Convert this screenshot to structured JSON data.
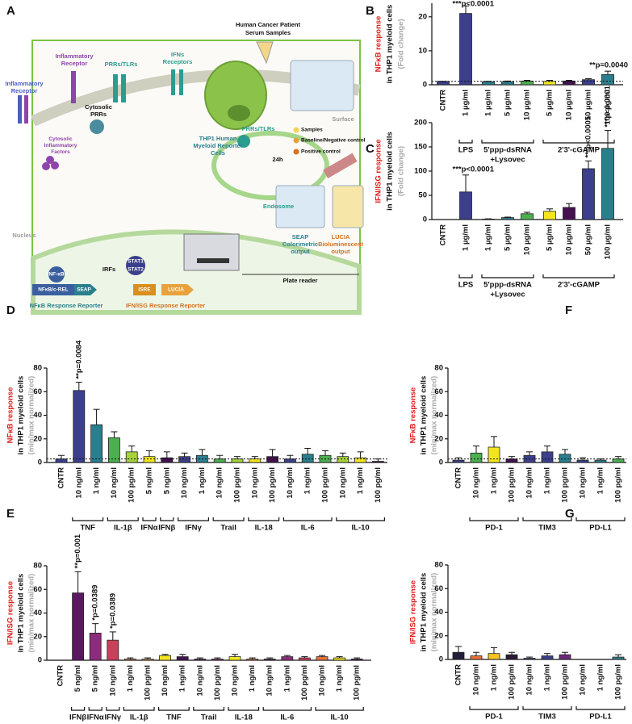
{
  "panel_a": {
    "letter": "A",
    "serum": [
      "Human Cancer Patient",
      "Serum Samples"
    ],
    "inflammatory_receptor_1": [
      "Inflammatory",
      "Receptor"
    ],
    "inflammatory_receptor_2": [
      "Inflammatory",
      "Receptor"
    ],
    "prrs_tlrs_surface": "PRRs/TLRs",
    "ifns_receptors": [
      "IFNs",
      "Receptors"
    ],
    "surface": "Surface",
    "cytosolic_prrs": [
      "Cytosolic",
      "PRRs"
    ],
    "cytosolic_factors": [
      "Cytosolic",
      "Inflammatory",
      "Factors"
    ],
    "prrs_tlrs_endosome": "PRRs/TLRs",
    "endosome": "Endosome",
    "nucleus": "Nucleus",
    "nfkb": "NF-κB",
    "irfs": "IRFs",
    "stat1": "STAT1",
    "stat2": "STAT2",
    "nfkb_crel": "NFκB/c-REL",
    "seap": "SEAP",
    "isre": "ISRE",
    "lucia": "LUCIA",
    "nfkb_reporter": "NFκB Response Reporter",
    "ifn_reporter": "IFN/ISG Response Reporter",
    "thp1": [
      "THP1 Human",
      "Myeloid Reporter",
      "Cells"
    ],
    "legend_samples": "Samples",
    "legend_baseline": "Baseline/Negative control",
    "legend_positive": "Positive control",
    "time": "24h",
    "seap_output": [
      "SEAP",
      "Colorimetric",
      "output"
    ],
    "lucia_output": [
      "LUCIA",
      "Bioluminescent",
      "output"
    ],
    "plate_reader": "Plate reader"
  },
  "chart_data": [
    {
      "type": "bar",
      "panel": "B",
      "ylabel": [
        {
          "text": "NFκB response",
          "color": "#e31a1c"
        },
        {
          "text": "in THP1 myeloid cells",
          "color": "#111111"
        },
        {
          "text": "(Fold change)",
          "color": "#aaaaaa"
        }
      ],
      "ylim": [
        0,
        24
      ],
      "yticks": [
        0,
        10,
        20
      ],
      "reference_line": 1,
      "groups": [
        {
          "label": null,
          "categories": [
            "CNTR"
          ],
          "values": [
            1
          ],
          "errors": [
            0
          ],
          "colors": [
            "#3b3f8c"
          ]
        },
        {
          "label": [
            "LPS"
          ],
          "categories": [
            "1 µg/ml"
          ],
          "values": [
            21
          ],
          "errors": [
            2.2
          ],
          "colors": [
            "#3b3f8c"
          ],
          "annotations": [
            "***p<0.0001"
          ]
        },
        {
          "label": [
            "5'ppp-dsRNA",
            "+Lysovec"
          ],
          "categories": [
            "1 µg/ml",
            "5 µg/ml",
            "10 µg/ml"
          ],
          "values": [
            0.9,
            0.9,
            1.1
          ],
          "errors": [
            0.1,
            0.2,
            0.2
          ],
          "colors": [
            "#2a7f8e",
            "#2a7f8e",
            "#4caf50"
          ]
        },
        {
          "label": [
            "2'3'-cGAMP"
          ],
          "categories": [
            "5 µg/ml",
            "10 µg/ml",
            "50 µg/ml",
            "100 µg/ml"
          ],
          "values": [
            1,
            1.1,
            1.5,
            3
          ],
          "errors": [
            0.3,
            0.2,
            0.3,
            1
          ],
          "colors": [
            "#f3e61e",
            "#44114f",
            "#3b3f8c",
            "#2a7f8e"
          ],
          "annotations": [
            null,
            null,
            null,
            "**p=0.0040"
          ]
        }
      ]
    },
    {
      "type": "bar",
      "panel": "C",
      "ylabel": [
        {
          "text": "IFN/ISG response",
          "color": "#e31a1c"
        },
        {
          "text": "in THP1 myeloid cells",
          "color": "#111111"
        },
        {
          "text": "(Fold change)",
          "color": "#aaaaaa"
        }
      ],
      "ylim": [
        0,
        200
      ],
      "yticks": [
        0,
        50,
        100,
        150,
        200
      ],
      "groups": [
        {
          "label": null,
          "categories": [
            "CNTR"
          ],
          "values": [
            0
          ],
          "errors": [
            0
          ],
          "colors": [
            "#3b3f8c"
          ]
        },
        {
          "label": [
            "LPS"
          ],
          "categories": [
            "1 µg/ml"
          ],
          "values": [
            57
          ],
          "errors": [
            35
          ],
          "colors": [
            "#3b3f8c"
          ],
          "annotations": [
            "***p<0.0001"
          ]
        },
        {
          "label": [
            "5'ppp-dsRNA",
            "+Lysovec"
          ],
          "categories": [
            "1 µg/ml",
            "5 µg/ml",
            "10 µg/ml"
          ],
          "values": [
            1,
            4,
            12
          ],
          "errors": [
            0.5,
            1,
            3
          ],
          "colors": [
            "#2a7f8e",
            "#2a7f8e",
            "#4caf50"
          ]
        },
        {
          "label": [
            "2'3'-cGAMP"
          ],
          "categories": [
            "5 µg/ml",
            "10 µg/ml",
            "50 µg/ml",
            "100 µg/ml"
          ],
          "values": [
            17,
            25,
            105,
            147
          ],
          "errors": [
            5,
            8,
            16,
            37
          ],
          "colors": [
            "#f3e61e",
            "#44114f",
            "#3b3f8c",
            "#2a7f8e"
          ],
          "annotations": [
            null,
            null,
            "***p<0.0001",
            "***p<0.0001"
          ]
        }
      ]
    },
    {
      "type": "bar",
      "panel": "D",
      "ylabel": [
        {
          "text": "NFκB response",
          "color": "#e31a1c"
        },
        {
          "text": "in THP1 myeloid cells",
          "color": "#111111"
        },
        {
          "text": "(min/max normalized)",
          "color": "#aaaaaa"
        }
      ],
      "ylim": [
        0,
        80
      ],
      "yticks": [
        0,
        20,
        40,
        60,
        80
      ],
      "reference_line": 3,
      "groups": [
        {
          "label": null,
          "categories": [
            "CNTR"
          ],
          "values": [
            3
          ],
          "errors": [
            3
          ],
          "colors": [
            "#3b3f8c"
          ]
        },
        {
          "label": [
            "TNF"
          ],
          "categories": [
            "10 ng/ml",
            "1 ng/ml"
          ],
          "values": [
            61,
            32
          ],
          "errors": [
            7,
            13
          ],
          "colors": [
            "#3b3f8c",
            "#2a7f8e"
          ],
          "annotations": [
            "**p=0.0084",
            null
          ]
        },
        {
          "label": [
            "IL-1β"
          ],
          "categories": [
            "10 ng/ml",
            "100 pg/ml"
          ],
          "values": [
            21,
            9
          ],
          "errors": [
            5,
            5
          ],
          "colors": [
            "#4caf50",
            "#a6d33c"
          ]
        },
        {
          "label": [
            "IFNα"
          ],
          "categories": [
            "5 ng/ml"
          ],
          "values": [
            5
          ],
          "errors": [
            5
          ],
          "colors": [
            "#f3e61e"
          ]
        },
        {
          "label": [
            "IFNβ"
          ],
          "categories": [
            "5 ng/ml"
          ],
          "values": [
            4
          ],
          "errors": [
            5
          ],
          "colors": [
            "#44114f"
          ]
        },
        {
          "label": [
            "IFNγ"
          ],
          "categories": [
            "10 ng/ml",
            "1 ng/ml"
          ],
          "values": [
            5,
            6
          ],
          "errors": [
            3,
            5
          ],
          "colors": [
            "#3b3f8c",
            "#2a7f8e"
          ]
        },
        {
          "label": [
            "Trail"
          ],
          "categories": [
            "10 ng/ml",
            "100 pg/ml"
          ],
          "values": [
            3,
            3
          ],
          "errors": [
            3,
            2
          ],
          "colors": [
            "#4caf50",
            "#a6d33c"
          ]
        },
        {
          "label": [
            "IL-18"
          ],
          "categories": [
            "10 ng/ml",
            "100 pg/ml"
          ],
          "values": [
            3,
            5
          ],
          "errors": [
            2,
            6
          ],
          "colors": [
            "#f3e61e",
            "#44114f"
          ]
        },
        {
          "label": [
            "IL-6"
          ],
          "categories": [
            "10 ng/ml",
            "1 ng/ml",
            "100 pg/ml"
          ],
          "values": [
            3,
            7,
            6
          ],
          "errors": [
            3,
            5,
            4
          ],
          "colors": [
            "#3b3f8c",
            "#2a7f8e",
            "#4caf50"
          ]
        },
        {
          "label": [
            "IL-10"
          ],
          "categories": [
            "10 ng/ml",
            "1 ng/ml",
            "100 pg/ml"
          ],
          "values": [
            5,
            4,
            1
          ],
          "errors": [
            3,
            5,
            2
          ],
          "colors": [
            "#a6d33c",
            "#f3e61e",
            "#44114f"
          ]
        }
      ]
    },
    {
      "type": "bar",
      "panel": "E",
      "ylabel": [
        {
          "text": "IFN/ISG response",
          "color": "#e31a1c"
        },
        {
          "text": "in THP1 myeloid cells",
          "color": "#111111"
        },
        {
          "text": "(min/max normalized)",
          "color": "#aaaaaa"
        }
      ],
      "ylim": [
        0,
        80
      ],
      "yticks": [
        0,
        20,
        40,
        60,
        80
      ],
      "groups": [
        {
          "label": null,
          "categories": [
            "CNTR"
          ],
          "values": [
            0
          ],
          "errors": [
            0
          ],
          "colors": [
            "#3b3f8c"
          ]
        },
        {
          "label": [
            "IFNβ"
          ],
          "categories": [
            "5 ng/ml"
          ],
          "values": [
            57
          ],
          "errors": [
            18
          ],
          "colors": [
            "#5b1660"
          ],
          "annotations": [
            "**p=0.001"
          ]
        },
        {
          "label": [
            "IFNα"
          ],
          "categories": [
            "5 ng/ml"
          ],
          "values": [
            23
          ],
          "errors": [
            8
          ],
          "colors": [
            "#8b2c7c"
          ],
          "annotations": [
            "*p=0.0389"
          ]
        },
        {
          "label": [
            "IFNγ"
          ],
          "categories": [
            "10 ng/ml"
          ],
          "values": [
            17
          ],
          "errors": [
            7
          ],
          "colors": [
            "#c9405a"
          ],
          "annotations": [
            "*p=0.0389"
          ]
        },
        {
          "label": [
            "IL-1β"
          ],
          "categories": [
            "1 ng/ml",
            "100 pg/ml"
          ],
          "values": [
            1,
            1
          ],
          "errors": [
            1,
            1
          ],
          "colors": [
            "#e9703a",
            "#f3a93b"
          ]
        },
        {
          "label": [
            "TNF"
          ],
          "categories": [
            "10 ng/ml",
            "1 ng/ml"
          ],
          "values": [
            4,
            3
          ],
          "errors": [
            1,
            2
          ],
          "colors": [
            "#f3e61e",
            "#44114f"
          ]
        },
        {
          "label": [
            "Trail"
          ],
          "categories": [
            "10 ng/ml",
            "100 pg/ml"
          ],
          "values": [
            1,
            1
          ],
          "errors": [
            1,
            1
          ],
          "colors": [
            "#5b1660",
            "#8b2c7c"
          ]
        },
        {
          "label": [
            "IL-18"
          ],
          "categories": [
            "10 ng/ml",
            "1 ng/ml"
          ],
          "values": [
            3,
            1
          ],
          "errors": [
            2,
            1
          ],
          "colors": [
            "#f3e61e",
            "#e9703a"
          ]
        },
        {
          "label": [
            "IL-6"
          ],
          "categories": [
            "10 ng/ml",
            "1 ng/ml",
            "100 pg/ml"
          ],
          "values": [
            1,
            3,
            2
          ],
          "errors": [
            1,
            1,
            1
          ],
          "colors": [
            "#44114f",
            "#8b2c7c",
            "#c9405a"
          ]
        },
        {
          "label": [
            "IL-10"
          ],
          "categories": [
            "10 ng/ml",
            "1 ng/ml",
            "100 pg/ml"
          ],
          "values": [
            3,
            2,
            1
          ],
          "errors": [
            1,
            1,
            1
          ],
          "colors": [
            "#e9703a",
            "#f3e61e",
            "#44114f"
          ]
        }
      ]
    },
    {
      "type": "bar",
      "panel": "F",
      "ylabel": [
        {
          "text": "NFκB response",
          "color": "#e31a1c"
        },
        {
          "text": "in THP1 myeloid cells",
          "color": "#111111"
        },
        {
          "text": "(min/max normalized)",
          "color": "#aaaaaa"
        }
      ],
      "ylim": [
        0,
        80
      ],
      "yticks": [
        0,
        20,
        40,
        60,
        80
      ],
      "reference_line": 3,
      "groups": [
        {
          "label": null,
          "categories": [
            "CNTR"
          ],
          "values": [
            2
          ],
          "errors": [
            2
          ],
          "colors": [
            "#3b3f8c"
          ]
        },
        {
          "label": [
            "PD-1"
          ],
          "categories": [
            "10 ng/ml",
            "1 ng/ml",
            "100 pg/ml"
          ],
          "values": [
            8,
            13,
            3
          ],
          "errors": [
            6,
            9,
            2
          ],
          "colors": [
            "#4caf50",
            "#f3e61e",
            "#44114f"
          ]
        },
        {
          "label": [
            "TIM3"
          ],
          "categories": [
            "10 ng/ml",
            "1 ng/ml",
            "100 pg/ml"
          ],
          "values": [
            6,
            9,
            7
          ],
          "errors": [
            3,
            5,
            4
          ],
          "colors": [
            "#3b3f8c",
            "#3b3f8c",
            "#2a7f8e"
          ]
        },
        {
          "label": [
            "PD-L1"
          ],
          "categories": [
            "10 ng/ml",
            "1 ng/ml",
            "100 pg/ml"
          ],
          "values": [
            2,
            2,
            3
          ],
          "errors": [
            2,
            1,
            2
          ],
          "colors": [
            "#3b3f8c",
            "#2a7f8e",
            "#4caf50"
          ]
        }
      ]
    },
    {
      "type": "bar",
      "panel": "G",
      "ylabel": [
        {
          "text": "IFN/ISG response",
          "color": "#e31a1c"
        },
        {
          "text": "in THP1 myeloid cells",
          "color": "#111111"
        },
        {
          "text": "(min/max normalized)",
          "color": "#aaaaaa"
        }
      ],
      "ylim": [
        0,
        80
      ],
      "yticks": [
        0,
        20,
        40,
        60,
        80
      ],
      "groups": [
        {
          "label": null,
          "categories": [
            "CNTR"
          ],
          "values": [
            6
          ],
          "errors": [
            5
          ],
          "colors": [
            "#1f1f3a"
          ]
        },
        {
          "label": [
            "PD-1"
          ],
          "categories": [
            "10 ng/ml",
            "1 ng/ml",
            "100 pg/ml"
          ],
          "values": [
            3,
            5,
            4
          ],
          "errors": [
            3,
            5,
            2
          ],
          "colors": [
            "#e9703a",
            "#f3c51e",
            "#2b1a33"
          ]
        },
        {
          "label": [
            "TIM3"
          ],
          "categories": [
            "10 ng/ml",
            "1 ng/ml",
            "100 pg/ml"
          ],
          "values": [
            1,
            3,
            4
          ],
          "errors": [
            1,
            2,
            2
          ],
          "colors": [
            "#3b3f8c",
            "#3b3f8c",
            "#6a2c7a"
          ]
        },
        {
          "label": [
            "PD-L1"
          ],
          "categories": [
            "10 ng/ml",
            "1 ng/ml",
            "100 pg/ml"
          ],
          "values": [
            0,
            0,
            2
          ],
          "errors": [
            0,
            0,
            2
          ],
          "colors": [
            "#888888",
            "#888888",
            "#2a7f8e"
          ]
        }
      ]
    }
  ]
}
